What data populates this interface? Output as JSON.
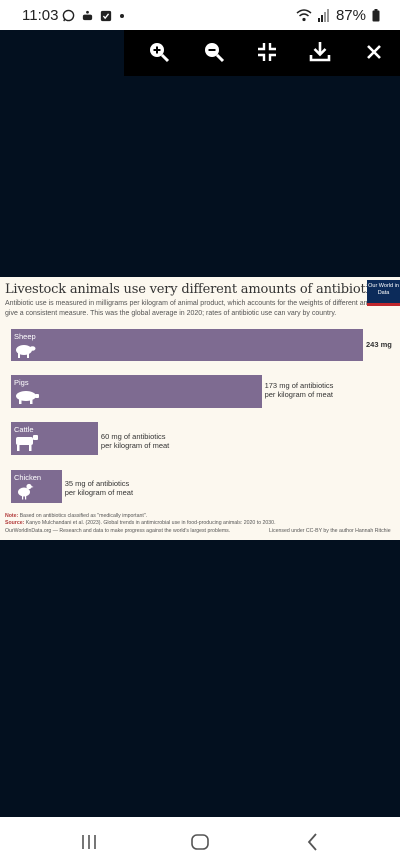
{
  "status": {
    "time": "11:03",
    "battery": "87%"
  },
  "toolbar": {
    "icons": [
      "zoom-in-icon",
      "zoom-out-icon",
      "exit-fullscreen-icon",
      "download-icon",
      "close-icon"
    ]
  },
  "chart": {
    "title": "Livestock animals use very different amounts of antibiotics",
    "subtitle": "Antibiotic use is measured in milligrams per kilogram of animal product, which accounts for the weights of different animals to give a consistent measure. This was the global average in 2020; rates of antibiotic use can vary by country.",
    "logo": "Our World in Data",
    "note_label": "Note:",
    "note": "Based on antibiotics classified as \"medically important\".",
    "source_label": "Source:",
    "source": "Kanyo Mulchandani et al. (2023). Global trends in antimicrobial use in food-producing animals: 2020 to 2030.",
    "footer_left": "OurWorldInData.org — Research and data to make progress against the world's largest problems.",
    "footer_right": "Licensed under CC-BY by the author Hannah Ritchie"
  },
  "chart_data": {
    "type": "bar",
    "title": "Livestock animals use very different amounts of antibiotics",
    "categories": [
      "Sheep",
      "Pigs",
      "Cattle",
      "Chicken"
    ],
    "values": [
      243,
      173,
      60,
      35
    ],
    "value_labels": [
      "243 mg",
      "173 mg of antibiotics",
      "60 mg of antibiotics",
      "35 mg of antibiotics"
    ],
    "unit_label": "per kilogram of meat",
    "color": "#7e6b91"
  }
}
